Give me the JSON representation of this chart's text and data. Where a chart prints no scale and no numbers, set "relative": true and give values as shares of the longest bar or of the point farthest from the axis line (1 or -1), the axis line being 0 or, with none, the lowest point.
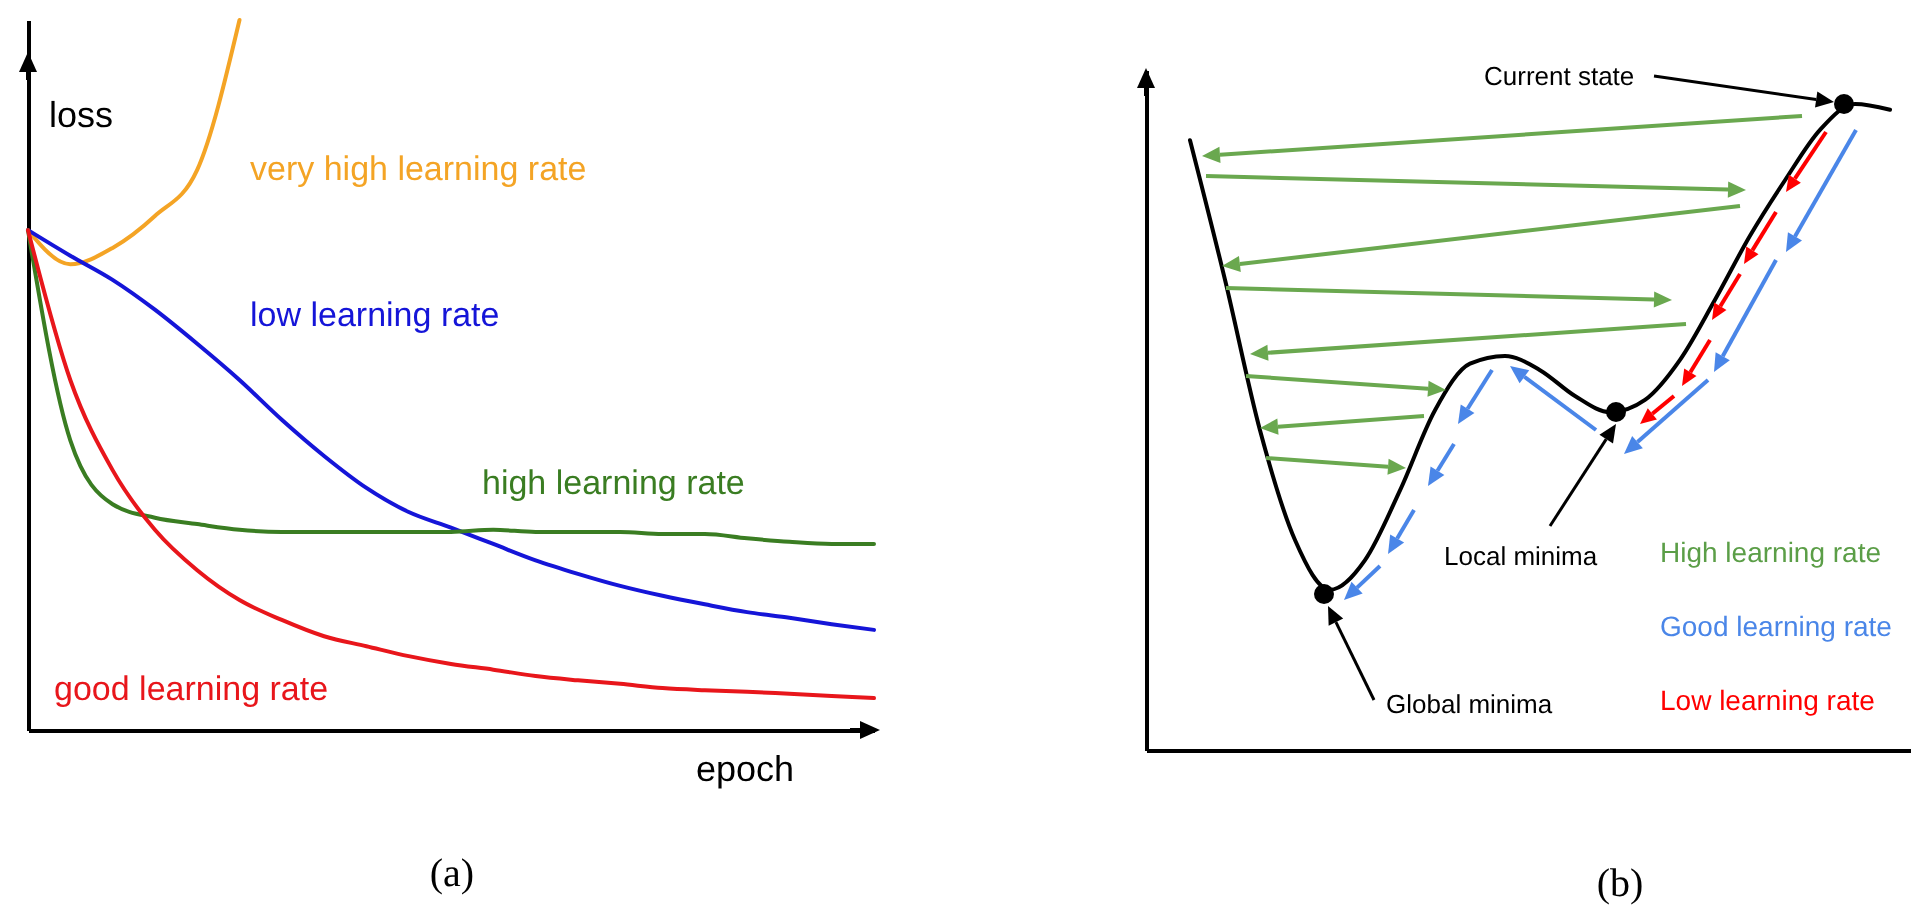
{
  "chart_data": [
    {
      "type": "line",
      "relative": true,
      "xlabel": "epoch",
      "ylabel": "loss",
      "tick_labels": false,
      "categories": [
        null,
        null,
        null,
        null,
        null,
        null,
        null,
        null,
        null,
        null,
        null,
        null,
        null,
        null,
        null,
        null,
        null,
        null,
        null,
        null,
        null
      ],
      "series": [
        {
          "name": "very high learning rate",
          "color": "#f4a425",
          "values": [
            0.704,
            0.656,
            0.679,
            0.724,
            0.789,
            1,
            null,
            null,
            null,
            null,
            null,
            null,
            null,
            null,
            null,
            null,
            null,
            null,
            null,
            null,
            null
          ]
        },
        {
          "name": "low learning rate",
          "color": "#1515d8",
          "values": [
            0.704,
            0.668,
            0.634,
            0.592,
            0.544,
            0.493,
            0.437,
            0.386,
            0.341,
            0.307,
            0.285,
            0.262,
            0.239,
            0.22,
            0.203,
            0.189,
            0.177,
            0.166,
            0.158,
            0.149,
            0.141
          ]
        },
        {
          "name": "high learning rate",
          "color": "#3a7d22",
          "values": [
            0.704,
            0.408,
            0.318,
            0.299,
            0.29,
            0.282,
            0.279,
            0.279,
            0.279,
            0.279,
            0.279,
            0.282,
            0.279,
            0.279,
            0.279,
            0.276,
            0.276,
            0.27,
            0.265,
            0.262,
            0.262
          ]
        },
        {
          "name": "good learning rate",
          "color": "#e8161b",
          "values": [
            0.704,
            0.493,
            0.366,
            0.282,
            0.225,
            0.183,
            0.155,
            0.132,
            0.118,
            0.104,
            0.093,
            0.085,
            0.076,
            0.07,
            0.065,
            0.059,
            0.056,
            0.054,
            0.051,
            0.048,
            0.045
          ]
        }
      ],
      "annotations": [
        "(a)"
      ]
    },
    {
      "type": "line",
      "relative": true,
      "tick_labels": false,
      "categories": [
        null,
        null,
        null,
        null,
        null,
        null,
        null,
        null,
        null,
        null,
        null,
        null,
        null,
        null,
        null,
        null,
        null,
        null,
        null,
        null,
        null
      ],
      "series": [
        {
          "color": "#000000",
          "values": [
            0.944,
            0.728,
            0.495,
            0.325,
            0.248,
            0.294,
            0.402,
            0.526,
            0.598,
            0.61,
            0.588,
            0.548,
            0.523,
            0.542,
            0.604,
            0.697,
            0.796,
            0.882,
            0.96,
            1,
            0.991
          ]
        }
      ],
      "annotations": [
        "Current state",
        "Local minima",
        "Global minima",
        "High learning rate",
        "Good learning rate",
        "Low learning rate",
        "(b)"
      ]
    }
  ]
}
